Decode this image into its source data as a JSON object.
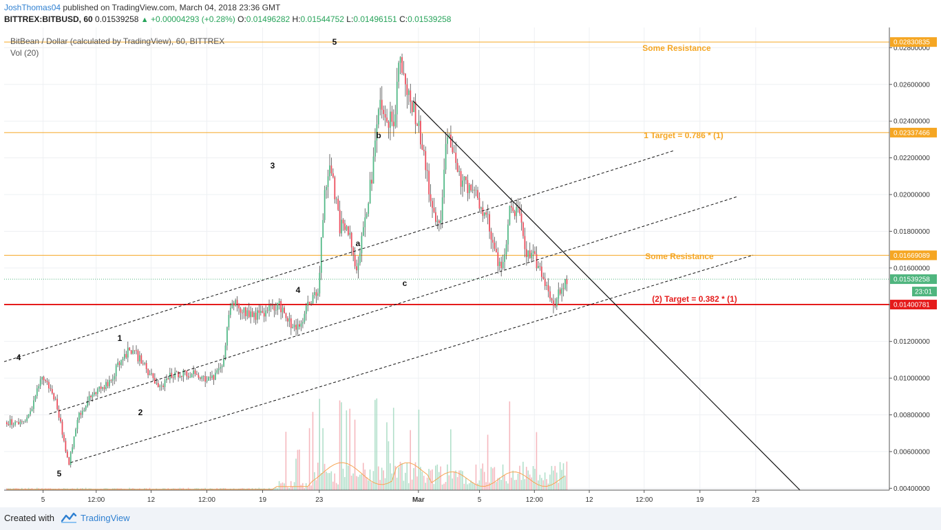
{
  "header": {
    "user": "JoshThomas04",
    "published": " published on TradingView.com, March 04, 2018 23:36 GMT",
    "symbol": "BITTREX:BITBUSD, 60",
    "price": "0.01539258",
    "arrow": "▲",
    "change": "+0.00004293 (+0.28%)",
    "o_label": "O:",
    "o_val": "0.01496282",
    "h_label": "H:",
    "h_val": "0.01544752",
    "l_label": "L:",
    "l_val": "0.01496151",
    "c_label": "C:",
    "c_val": "0.01539258"
  },
  "footer": {
    "created_with": "Created with",
    "brand": "TradingView"
  },
  "colors": {
    "up": "#53b987",
    "down": "#eb4d5c",
    "orange": "#f5a623",
    "red": "#e51b1b",
    "current": "#4fb57e",
    "grid": "#eef0f3"
  },
  "chart_data": {
    "type": "candlestick",
    "title": "BitBean / Dollar (calculated by TradingView), 60, BITTREX",
    "subtitle": "Vol (20)",
    "ylim": [
      0.0039,
      0.0291
    ],
    "y_ticks": [
      "0.02800000",
      "0.02600000",
      "0.02400000",
      "0.02200000",
      "0.02000000",
      "0.01800000",
      "0.01600000",
      "0.01400000",
      "0.01200000",
      "0.01000000",
      "0.00800000",
      "0.00600000",
      "0.00400000"
    ],
    "x_ticks": [
      "5",
      "12:00",
      "12",
      "12:00",
      "19",
      "23",
      "Mar",
      "5",
      "12:00",
      "12",
      "12:00",
      "19",
      "23"
    ],
    "price_path": [
      [
        2.5,
        0.0076
      ],
      [
        4.3,
        0.0101
      ],
      [
        5.2,
        0.0094
      ],
      [
        6,
        0.0085
      ],
      [
        6.9,
        0.0062
      ],
      [
        7.3,
        0.0053
      ],
      [
        8.3,
        0.0079
      ],
      [
        10.1,
        0.0092
      ],
      [
        11.9,
        0.0097
      ],
      [
        13.3,
        0.0112
      ],
      [
        14.5,
        0.0116
      ],
      [
        16.2,
        0.0104
      ],
      [
        17.6,
        0.0094
      ],
      [
        18.6,
        0.0101
      ],
      [
        20,
        0.0103
      ],
      [
        21.8,
        0.0102
      ],
      [
        23.3,
        0.0099
      ],
      [
        24.5,
        0.0104
      ],
      [
        25,
        0.0118
      ],
      [
        25.5,
        0.0141
      ],
      [
        26.5,
        0.0139
      ],
      [
        28,
        0.0134
      ],
      [
        29.5,
        0.0136
      ],
      [
        31.1,
        0.014
      ],
      [
        32.3,
        0.013
      ],
      [
        33.3,
        0.0126
      ],
      [
        34.4,
        0.0141
      ],
      [
        35.5,
        0.0148
      ],
      [
        36.2,
        0.0201
      ],
      [
        36.8,
        0.0218
      ],
      [
        37.9,
        0.0183
      ],
      [
        38.9,
        0.018
      ],
      [
        39.8,
        0.016
      ],
      [
        40.7,
        0.0186
      ],
      [
        41.6,
        0.0211
      ],
      [
        42.5,
        0.0255
      ],
      [
        43.1,
        0.0237
      ],
      [
        44.1,
        0.0243
      ],
      [
        44.7,
        0.028
      ],
      [
        45.2,
        0.026
      ],
      [
        46.2,
        0.0247
      ],
      [
        47.3,
        0.0228
      ],
      [
        48.4,
        0.0188
      ],
      [
        49.3,
        0.0186
      ],
      [
        50,
        0.0238
      ],
      [
        51.3,
        0.0209
      ],
      [
        52.9,
        0.0203
      ],
      [
        54.6,
        0.0188
      ],
      [
        55.5,
        0.0166
      ],
      [
        56.4,
        0.016
      ],
      [
        57.1,
        0.0191
      ],
      [
        58.3,
        0.019
      ],
      [
        58.9,
        0.0168
      ],
      [
        60,
        0.0165
      ],
      [
        61,
        0.0154
      ],
      [
        62.2,
        0.014
      ],
      [
        63.2,
        0.0152
      ],
      [
        63.7,
        0.0155
      ]
    ],
    "volume_peak_max": 0.0089,
    "horizontal_levels": [
      {
        "value": 0.02830835,
        "label": "0.02830835",
        "color": "#f5a623"
      },
      {
        "value": 0.02337466,
        "label": "0.02337466",
        "color": "#f5a623"
      },
      {
        "value": 0.01669089,
        "label": "0.01669089",
        "color": "#f5a623"
      },
      {
        "value": 0.01400781,
        "label": "0.01400781",
        "color": "#e51b1b"
      }
    ],
    "current": {
      "value": 0.01539258,
      "label": "0.01539258",
      "countdown": "23:01"
    },
    "annotations": {
      "some_resistance_top": "Some Resistance",
      "target1": "1 Target = 0.786 * (1)",
      "some_resistance_mid": "Some Resistance",
      "target2": "(2) Target = 0.382 * (1)"
    },
    "wave_labels": {
      "w4a": "4",
      "w1": "1",
      "w2": "2",
      "w5a": "5",
      "w3": "3",
      "w4b": "4",
      "w5b": "5",
      "wa": "a",
      "wb": "b",
      "wc": "c"
    },
    "channel_lines": [
      {
        "x1": 0,
        "y1": 0.0109,
        "x2": 75.7,
        "y2": 0.0224
      },
      {
        "x1": 5.1,
        "y1": 0.00805,
        "x2": 82.9,
        "y2": 0.0199
      },
      {
        "x1": 7.5,
        "y1": 0.0054,
        "x2": 84.6,
        "y2": 0.0167
      }
    ],
    "trend_line": {
      "x1": 46.2,
      "y1": 0.0251,
      "x2": 89.9,
      "y2": 0.0039
    }
  }
}
